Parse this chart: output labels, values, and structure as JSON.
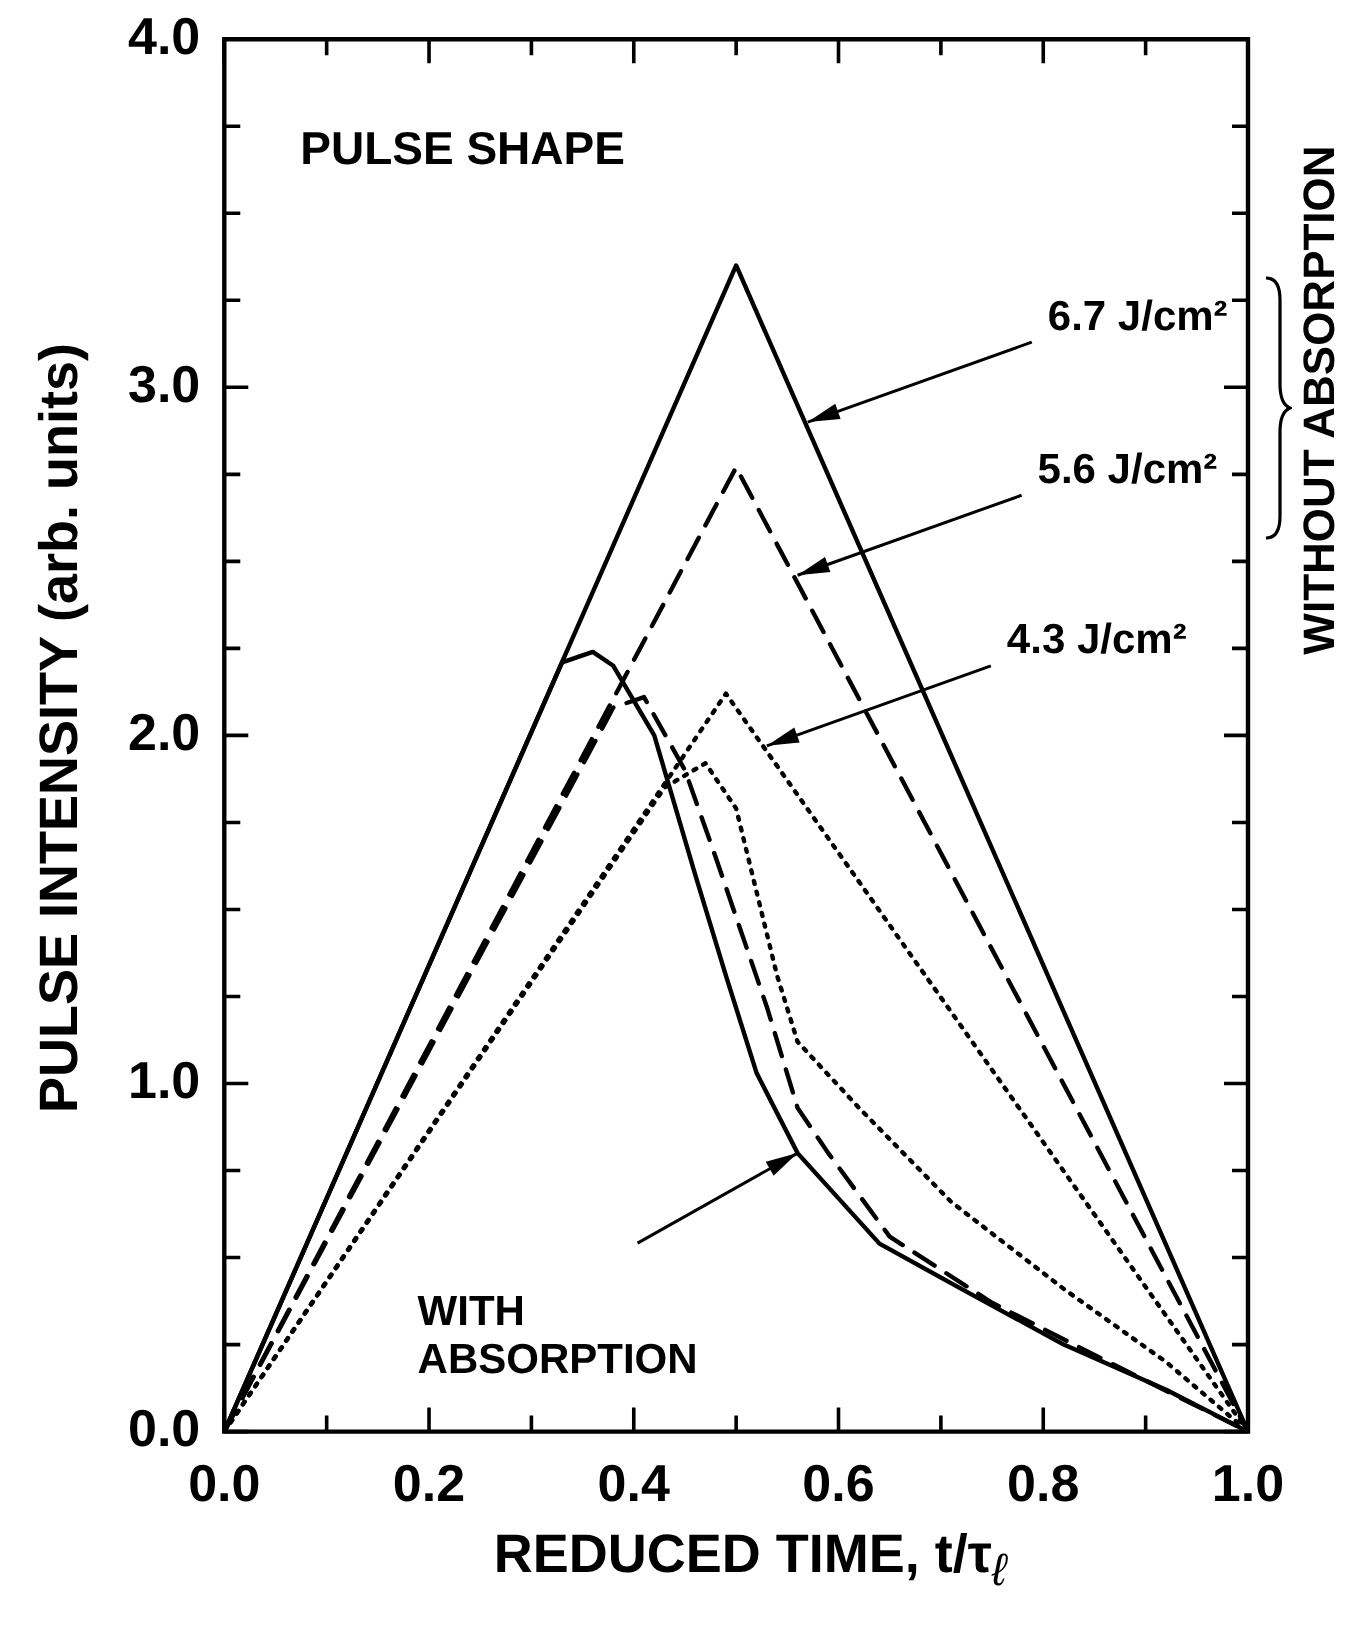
{
  "chart_data": {
    "type": "line",
    "title": "PULSE SHAPE",
    "xlabel": "REDUCED TIME,  t/τ$_{ℓ}$",
    "ylabel": "PULSE INTENSITY  (arb. units)",
    "xlim": [
      0,
      1
    ],
    "ylim": [
      0,
      4
    ],
    "xticks": [
      {
        "value": 0,
        "label": "0.0"
      },
      {
        "value": 0.1,
        "label": null
      },
      {
        "value": 0.2,
        "label": "0.2"
      },
      {
        "value": 0.3,
        "label": null
      },
      {
        "value": 0.4,
        "label": "0.4"
      },
      {
        "value": 0.5,
        "label": null
      },
      {
        "value": 0.6,
        "label": "0.6"
      },
      {
        "value": 0.7,
        "label": null
      },
      {
        "value": 0.8,
        "label": "0.8"
      },
      {
        "value": 0.9,
        "label": null
      },
      {
        "value": 1,
        "label": "1.0"
      }
    ],
    "yticks": [
      {
        "value": 0,
        "label": "0.0"
      },
      {
        "value": 0.25,
        "label": null
      },
      {
        "value": 0.5,
        "label": null
      },
      {
        "value": 0.75,
        "label": null
      },
      {
        "value": 1,
        "label": "1.0"
      },
      {
        "value": 1.25,
        "label": null
      },
      {
        "value": 1.5,
        "label": null
      },
      {
        "value": 1.75,
        "label": null
      },
      {
        "value": 2,
        "label": "2.0"
      },
      {
        "value": 2.25,
        "label": null
      },
      {
        "value": 2.5,
        "label": null
      },
      {
        "value": 2.75,
        "label": null
      },
      {
        "value": 3,
        "label": "3.0"
      },
      {
        "value": 3.25,
        "label": null
      },
      {
        "value": 3.5,
        "label": null
      },
      {
        "value": 3.75,
        "label": null
      },
      {
        "value": 4,
        "label": "4.0"
      }
    ],
    "grid": false,
    "legend": false,
    "marker": "none",
    "series": [
      {
        "color": "#000000",
        "line_style": "solid",
        "x": [
          0,
          0.5,
          1
        ],
        "values": [
          0,
          3.35,
          0
        ]
      },
      {
        "color": "#000000",
        "line_style": "dashed",
        "x": [
          0,
          0.5,
          1
        ],
        "values": [
          0,
          2.77,
          0
        ]
      },
      {
        "color": "#000000",
        "line_style": "dotted",
        "x": [
          0,
          0.49,
          1
        ],
        "values": [
          0,
          2.12,
          0
        ]
      },
      {
        "color": "#000000",
        "line_style": "solid",
        "x": [
          0,
          0.33,
          0.36,
          0.38,
          0.42,
          0.46,
          0.49,
          0.52,
          0.56,
          0.64,
          0.72,
          0.82,
          0.92,
          1
        ],
        "values": [
          0,
          2.21,
          2.24,
          2.2,
          2.0,
          1.6,
          1.31,
          1.03,
          0.8,
          0.54,
          0.41,
          0.25,
          0.12,
          0
        ]
      },
      {
        "color": "#000000",
        "line_style": "dashed",
        "x": [
          0,
          0.38,
          0.41,
          0.45,
          0.48,
          0.53,
          0.56,
          0.59,
          0.62,
          0.65,
          0.75,
          0.85,
          1
        ],
        "values": [
          0,
          2.08,
          2.11,
          1.9,
          1.65,
          1.22,
          0.93,
          0.8,
          0.68,
          0.56,
          0.37,
          0.22,
          0
        ]
      },
      {
        "color": "#000000",
        "line_style": "dotted",
        "x": [
          0,
          0.43,
          0.47,
          0.5,
          0.54,
          0.56,
          0.62,
          0.71,
          0.82,
          0.92,
          1
        ],
        "values": [
          0,
          1.85,
          1.92,
          1.79,
          1.31,
          1.12,
          0.93,
          0.66,
          0.41,
          0.2,
          0
        ]
      }
    ],
    "annotations": [
      {
        "text": "6.7 J/cm²",
        "x": 0.57,
        "y": 2.9
      },
      {
        "text": "5.6 J/cm²",
        "x": 0.56,
        "y": 2.46
      },
      {
        "text": "4.3 J/cm²",
        "x": 0.53,
        "y": 1.97
      },
      {
        "text": "WITH ABSORPTION",
        "x": 0.56,
        "y": 0.8
      },
      "WITHOUT ABSORPTION"
    ]
  }
}
